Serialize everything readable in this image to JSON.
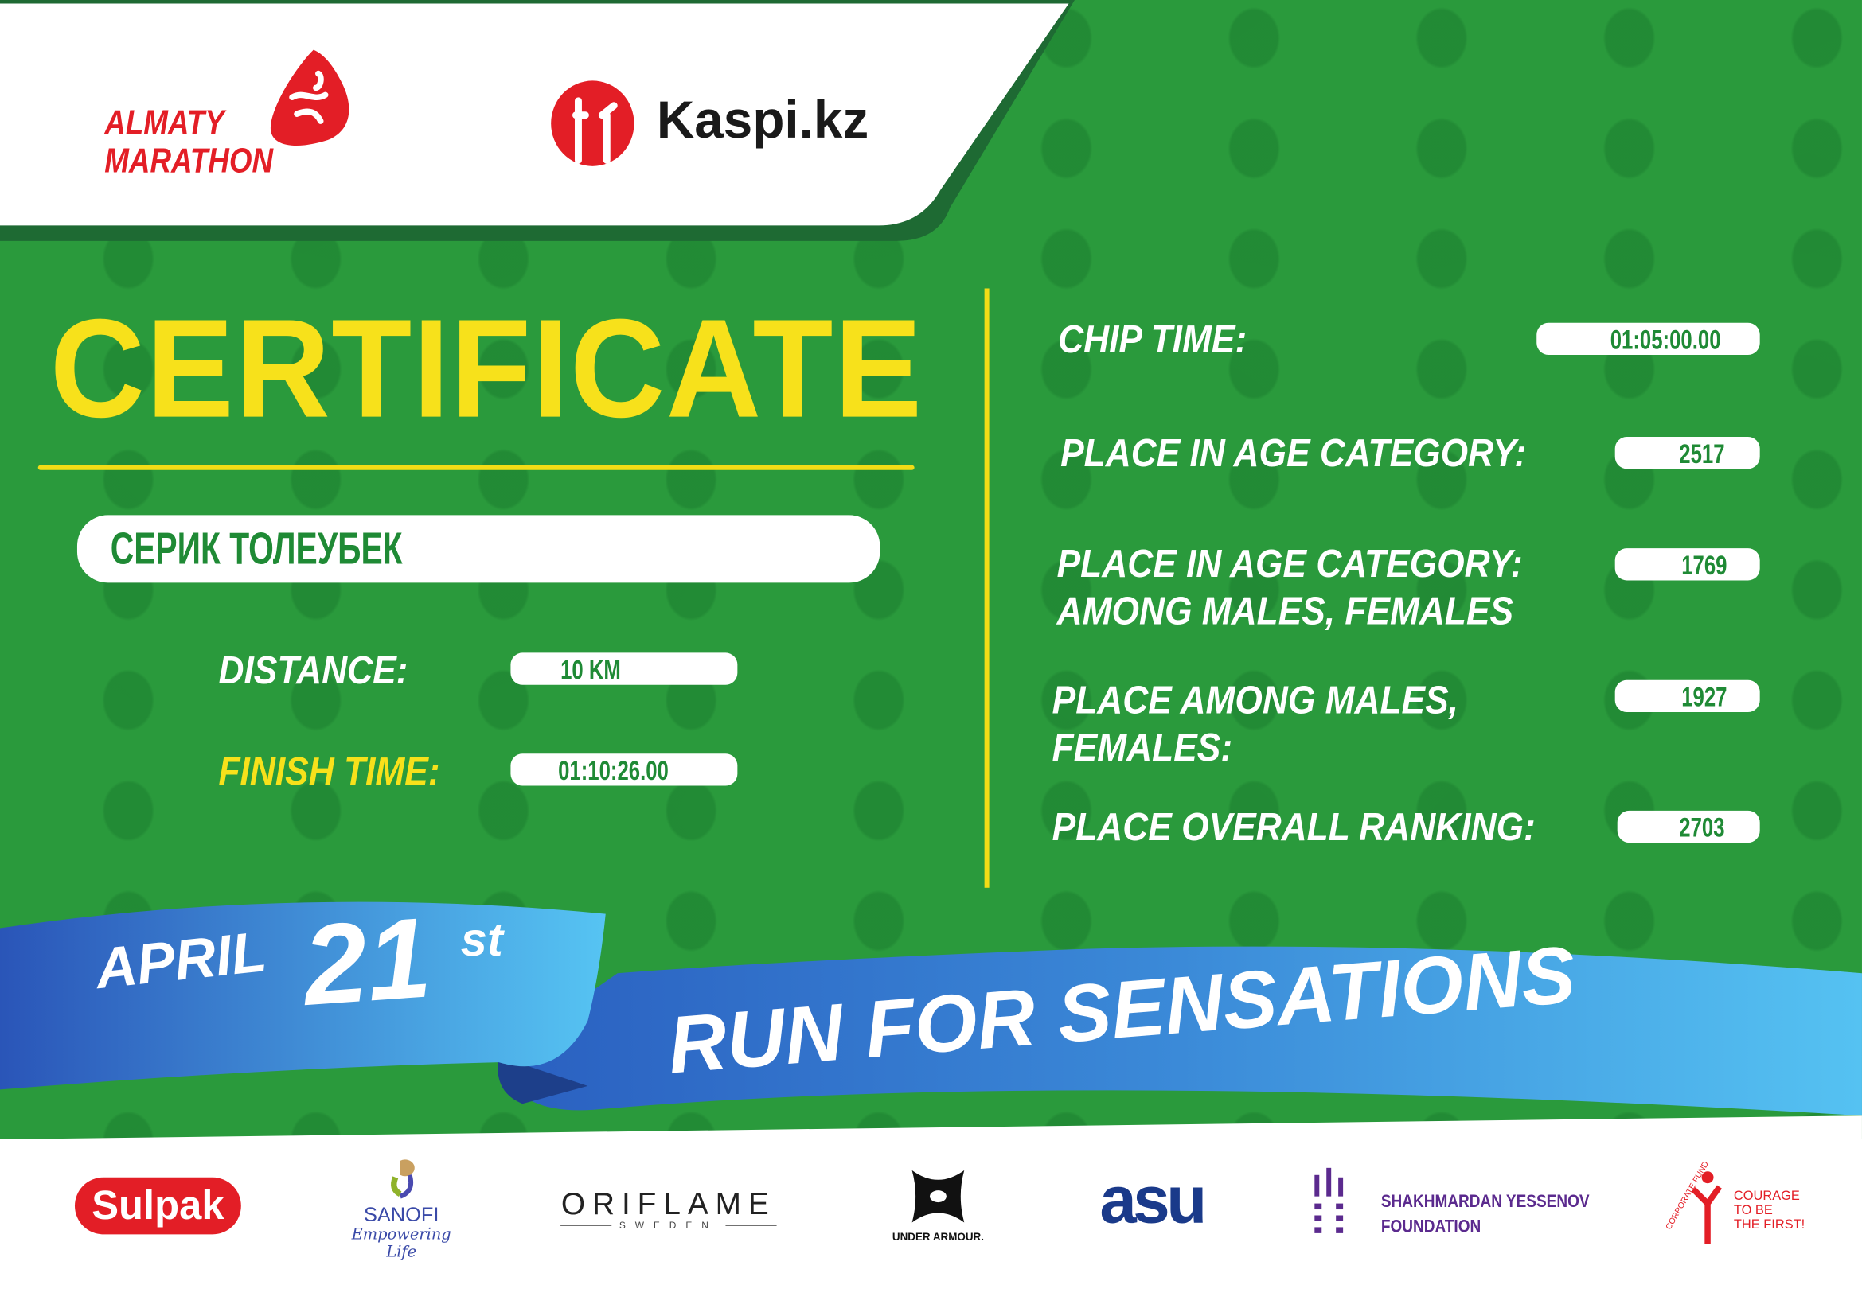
{
  "header": {
    "logo_almaty": [
      "ALMATY",
      "MARATHON"
    ],
    "logo_kaspi": "Kaspi.kz"
  },
  "certificate": {
    "title": "CERTIFICATE",
    "participant_name": "СЕРИК ТОЛЕУБЕК",
    "distance_label": "DISTANCE:",
    "distance_value": "10 KM",
    "finish_time_label": "FINISH TIME:",
    "finish_time_value": "01:10:26.00"
  },
  "results": {
    "chip_time_label": "CHIP TIME:",
    "chip_time_value": "01:05:00.00",
    "age_category_label": "PLACE IN AGE CATEGORY:",
    "age_category_value": "2517",
    "age_category_gender_label_1": "PLACE IN AGE CATEGORY:",
    "age_category_gender_label_2": "AMONG MALES, FEMALES",
    "age_category_gender_value": "1769",
    "gender_label_1": "PLACE AMONG MALES,",
    "gender_label_2": "FEMALES:",
    "gender_value": "1927",
    "overall_label": "PLACE OVERALL RANKING:",
    "overall_value": "2703"
  },
  "ribbon": {
    "month": "APRIL",
    "day": "21",
    "suffix": "st",
    "slogan": "RUN FOR SENSATIONS"
  },
  "sponsors": {
    "sulpak": "Sulpak",
    "sanofi": "SANOFI",
    "sanofi_tagline": "Empowering Life",
    "oriflame": "ORIFLAME",
    "oriflame_sub": "SWEDEN",
    "under_armour": "UNDER ARMOUR.",
    "asu": "asu",
    "yessenov_1": "SHAKHMARDAN YESSENOV",
    "yessenov_2": "FOUNDATION",
    "courage_arc": "CORPORATE FUND",
    "courage_1": "COURAGE",
    "courage_2": "TO BE",
    "courage_3": "THE FIRST!"
  },
  "colors": {
    "green": "#2a9a3c",
    "dark_green": "#1e6a33",
    "yellow": "#f7e11b",
    "brand_red": "#e31e26",
    "ribbon_blue": "#2f7fd0",
    "ribbon_light": "#52c0f0"
  }
}
